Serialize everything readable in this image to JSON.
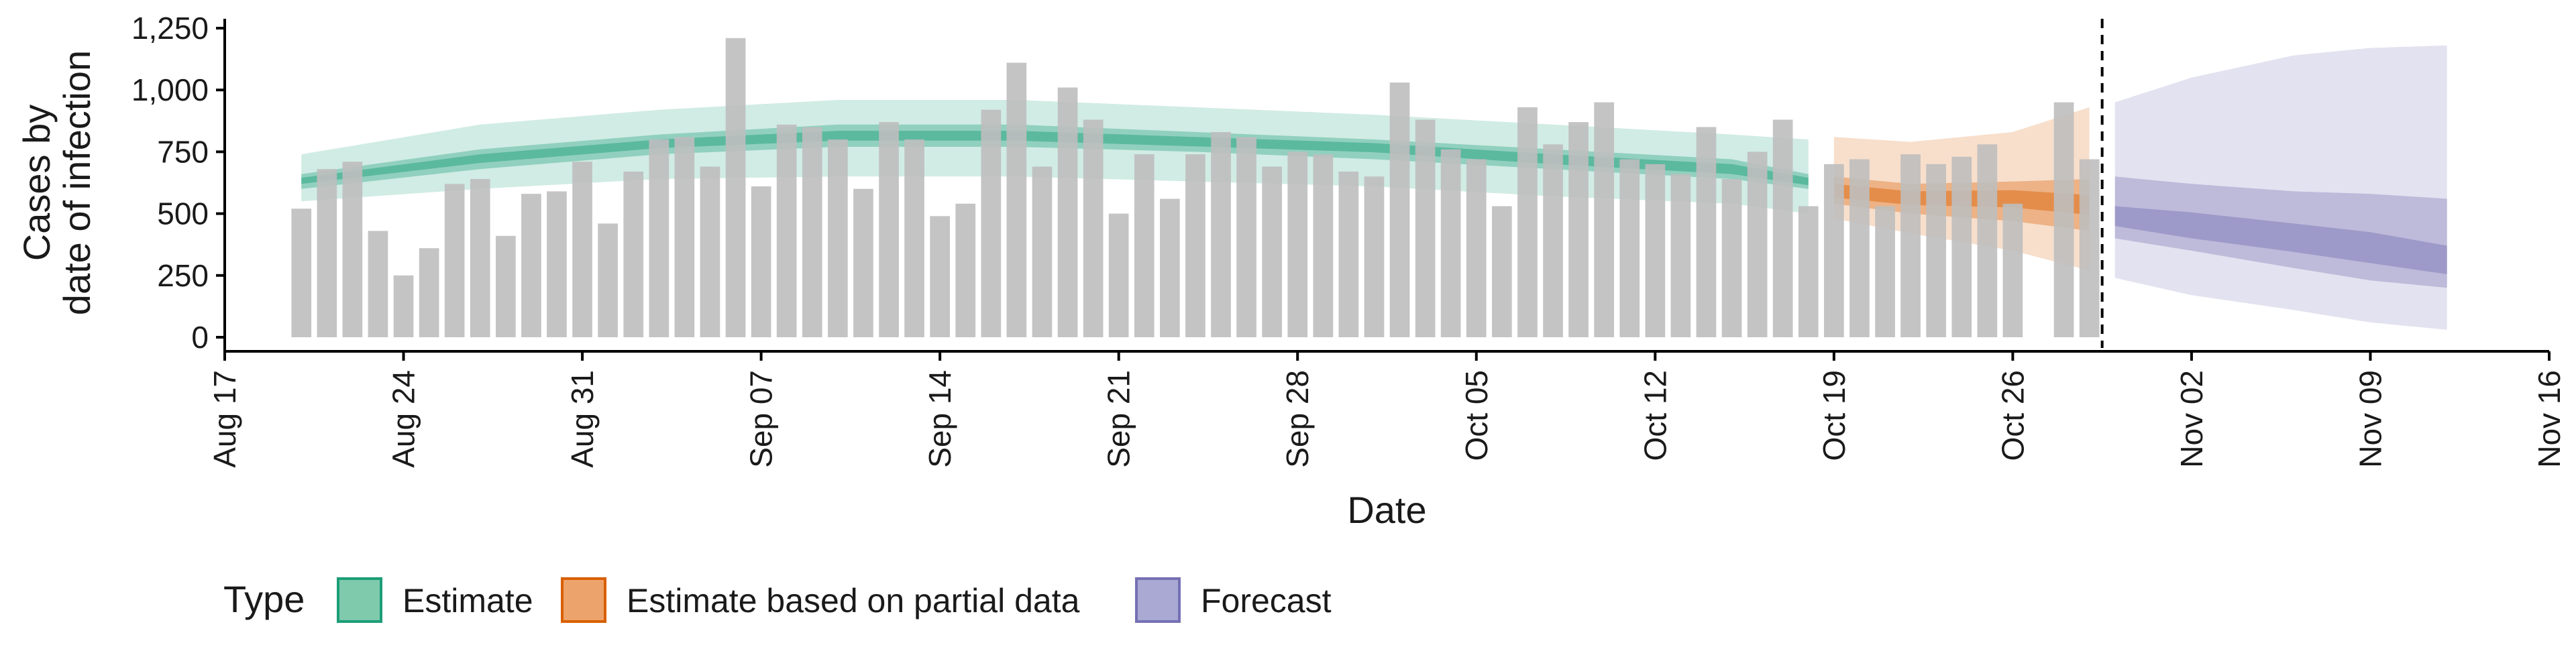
{
  "chart_data": {
    "type": "bar",
    "xlabel": "Date",
    "ylabel_lines": [
      "Cases by",
      "date of infection"
    ],
    "ylim": [
      0,
      1250
    ],
    "y_ticks": [
      "0",
      "250",
      "500",
      "750",
      "1,000",
      "1,250"
    ],
    "y_tick_values": [
      0,
      250,
      500,
      750,
      1000,
      1250
    ],
    "x_domain": [
      "2020-08-17",
      "2020-11-16"
    ],
    "x_ticks": [
      "Aug 17",
      "Aug 24",
      "Aug 31",
      "Sep 07",
      "Sep 14",
      "Sep 21",
      "Sep 28",
      "Oct 05",
      "Oct 12",
      "Oct 19",
      "Oct 26",
      "Nov 02",
      "Nov 09",
      "Nov 16"
    ],
    "x_tick_dates": [
      "2020-08-17",
      "2020-08-24",
      "2020-08-31",
      "2020-09-07",
      "2020-09-14",
      "2020-09-21",
      "2020-09-28",
      "2020-10-05",
      "2020-10-12",
      "2020-10-19",
      "2020-10-26",
      "2020-11-02",
      "2020-11-09",
      "2020-11-16"
    ],
    "bars_start_date": "2020-08-20",
    "bar_values": [
      520,
      680,
      710,
      430,
      250,
      360,
      620,
      640,
      410,
      580,
      590,
      710,
      460,
      670,
      800,
      810,
      690,
      1210,
      610,
      860,
      850,
      800,
      600,
      870,
      800,
      490,
      540,
      920,
      1110,
      690,
      1010,
      880,
      500,
      740,
      560,
      740,
      830,
      810,
      690,
      750,
      740,
      670,
      650,
      1030,
      880,
      760,
      720,
      530,
      930,
      780,
      870,
      950,
      720,
      700,
      660,
      850,
      640,
      750,
      880,
      530,
      700,
      720,
      530,
      740,
      700,
      730,
      780,
      540,
      0,
      950,
      720
    ],
    "bar_color": "#bebebe",
    "forecast_date": "2020-10-29",
    "legend": {
      "title": "Type",
      "items": [
        {
          "label": "Estimate",
          "fill": "#7fc9ad",
          "stroke": "#1b9e77"
        },
        {
          "label": "Estimate based on partial data",
          "fill": "#eda46c",
          "stroke": "#d95f02"
        },
        {
          "label": "Forecast",
          "fill": "#a9a9d3",
          "stroke": "#7570b3"
        }
      ],
      "placement": "bottom"
    },
    "series": [
      {
        "name": "Estimate",
        "color": "#1b9e77",
        "dates": [
          "2020-08-20",
          "2020-08-27",
          "2020-09-03",
          "2020-09-10",
          "2020-09-17",
          "2020-09-24",
          "2020-10-01",
          "2020-10-08",
          "2020-10-15",
          "2020-10-18"
        ],
        "median": [
          630,
          720,
          780,
          815,
          815,
          790,
          770,
          720,
          680,
          630
        ],
        "lower90": [
          550,
          600,
          640,
          650,
          650,
          630,
          610,
          570,
          540,
          500
        ],
        "upper90": [
          740,
          860,
          920,
          960,
          960,
          930,
          900,
          860,
          820,
          800
        ],
        "lower50": [
          600,
          680,
          740,
          770,
          770,
          750,
          720,
          680,
          640,
          600
        ],
        "upper50": [
          660,
          760,
          820,
          860,
          860,
          830,
          800,
          760,
          720,
          660
        ],
        "lower20": [
          620,
          705,
          765,
          795,
          795,
          772,
          748,
          700,
          660,
          615
        ],
        "upper20": [
          645,
          740,
          800,
          835,
          835,
          810,
          785,
          740,
          700,
          645
        ]
      },
      {
        "name": "Estimate based on partial data",
        "color": "#d95f02",
        "dates": [
          "2020-10-19",
          "2020-10-22",
          "2020-10-26",
          "2020-10-29"
        ],
        "median": [
          590,
          560,
          560,
          530
        ],
        "lower90": [
          480,
          420,
          350,
          270
        ],
        "upper90": [
          810,
          790,
          830,
          930
        ],
        "lower50": [
          540,
          500,
          470,
          430
        ],
        "upper50": [
          650,
          620,
          630,
          640
        ],
        "lower20": [
          565,
          535,
          525,
          495
        ],
        "upper20": [
          620,
          590,
          595,
          575
        ]
      },
      {
        "name": "Forecast",
        "color": "#7570b3",
        "dates": [
          "2020-10-30",
          "2020-11-02",
          "2020-11-06",
          "2020-11-09",
          "2020-11-12"
        ],
        "median": [
          490,
          450,
          400,
          360,
          310
        ],
        "lower90": [
          240,
          170,
          110,
          60,
          30
        ],
        "upper90": [
          950,
          1050,
          1140,
          1170,
          1180
        ],
        "lower50": [
          400,
          350,
          280,
          230,
          200
        ],
        "upper50": [
          650,
          620,
          590,
          580,
          560
        ],
        "lower20": [
          450,
          400,
          345,
          300,
          255
        ],
        "upper20": [
          530,
          505,
          460,
          425,
          370
        ]
      }
    ]
  }
}
